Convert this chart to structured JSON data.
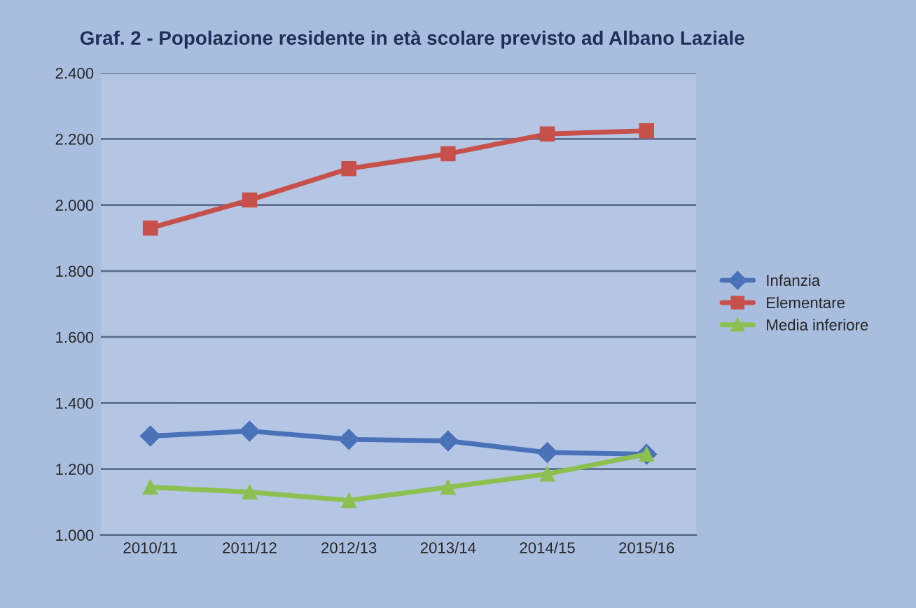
{
  "chart_data": {
    "type": "line",
    "title": "Graf. 2 - Popolazione residente in età scolare previsto ad Albano Laziale",
    "categories": [
      "2010/11",
      "2011/12",
      "2012/13",
      "2013/14",
      "2014/15",
      "2015/16"
    ],
    "series": [
      {
        "name": "Infanzia",
        "color": "#4a72b8",
        "marker": "diamond",
        "values": [
          1300,
          1315,
          1290,
          1285,
          1250,
          1245
        ]
      },
      {
        "name": "Elementare",
        "color": "#c8504a",
        "marker": "square",
        "values": [
          1930,
          2015,
          2110,
          2155,
          2215,
          2225
        ]
      },
      {
        "name": "Media inferiore",
        "color": "#8cc050",
        "marker": "triangle",
        "values": [
          1145,
          1130,
          1105,
          1145,
          1185,
          1245
        ]
      }
    ],
    "ylim": [
      1000,
      2400
    ],
    "yticks": [
      {
        "value": 1000,
        "label": "1.000"
      },
      {
        "value": 1200,
        "label": "1.200"
      },
      {
        "value": 1400,
        "label": "1.400"
      },
      {
        "value": 1600,
        "label": "1.600"
      },
      {
        "value": 1800,
        "label": "1.800"
      },
      {
        "value": 2000,
        "label": "2.000"
      },
      {
        "value": 2200,
        "label": "2.200"
      },
      {
        "value": 2400,
        "label": "2.400"
      }
    ],
    "grid": "y",
    "legend": "right",
    "line_style": "solid"
  }
}
